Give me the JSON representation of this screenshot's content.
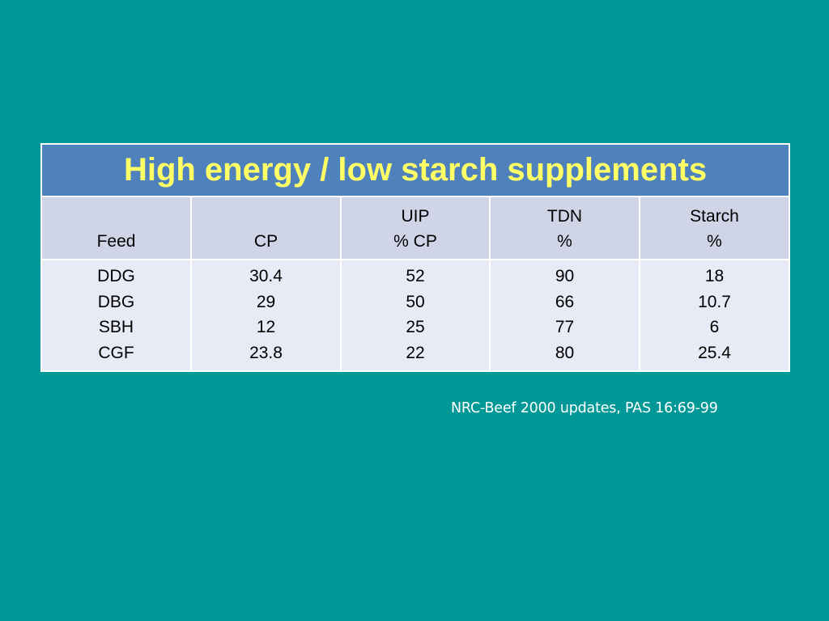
{
  "table": {
    "title": "High energy / low starch supplements",
    "headers": [
      [
        "",
        "Feed"
      ],
      [
        "",
        "CP"
      ],
      [
        "UIP",
        "% CP"
      ],
      [
        "TDN",
        "%"
      ],
      [
        "Starch",
        "%"
      ]
    ],
    "columns": [
      [
        "DDG",
        "DBG",
        "SBH",
        "CGF"
      ],
      [
        "30.4",
        "29",
        "12",
        "23.8"
      ],
      [
        "52",
        "50",
        "25",
        "22"
      ],
      [
        "90",
        "66",
        "77",
        "80"
      ],
      [
        "18",
        "10.7",
        "6",
        "25.4"
      ]
    ]
  },
  "citation": "NRC-Beef 2000 updates, PAS 16:69-99"
}
